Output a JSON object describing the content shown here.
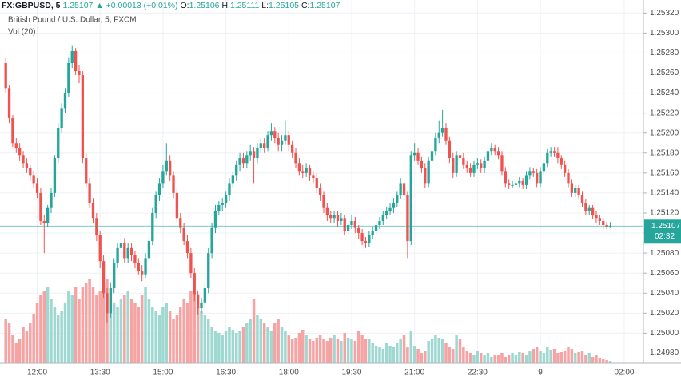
{
  "header": {
    "symbol": "FX:GBPUSD, 5",
    "last": "1.25107",
    "change": "▲ +0.00013 (+0.01%)",
    "o_label": "O:",
    "o": "1.25106",
    "h_label": "H:",
    "h": "1.25111",
    "l_label": "L:",
    "l": "1.25105",
    "c_label": "C:",
    "c": "1.25107",
    "subtitle": "British Pound / U.S. Dollar, 5, FXCM",
    "volume_label": "Vol (20)",
    "countdown": "02:32"
  },
  "chart_data": {
    "type": "candlestick",
    "last_price": 1.25107,
    "up_color": "#26a69a",
    "down_color": "#ef5350",
    "volume_up_color": "#9fd8d1",
    "volume_down_color": "#f5a3a3",
    "grid": true,
    "ylim": [
      1.2497,
      1.25333
    ],
    "vlim": [
      0,
      455
    ],
    "yticks": [
      {
        "value": 1.2498,
        "label": "1.24980"
      },
      {
        "value": 1.25,
        "label": "1.25000"
      },
      {
        "value": 1.2502,
        "label": "1.25020"
      },
      {
        "value": 1.2504,
        "label": "1.25040"
      },
      {
        "value": 1.2506,
        "label": "1.25060"
      },
      {
        "value": 1.2508,
        "label": "1.25080"
      },
      {
        "value": 1.251,
        "label": "1.25100"
      },
      {
        "value": 1.2512,
        "label": "1.25120"
      },
      {
        "value": 1.2514,
        "label": "1.25140"
      },
      {
        "value": 1.2516,
        "label": "1.25160"
      },
      {
        "value": 1.2518,
        "label": "1.25180"
      },
      {
        "value": 1.252,
        "label": "1.25200"
      },
      {
        "value": 1.2522,
        "label": "1.25220"
      },
      {
        "value": 1.2524,
        "label": "1.25240"
      },
      {
        "value": 1.2526,
        "label": "1.25260"
      },
      {
        "value": 1.2528,
        "label": "1.25280"
      },
      {
        "value": 1.253,
        "label": "1.25300"
      },
      {
        "value": 1.2532,
        "label": "1.25320"
      }
    ],
    "categories": [
      null,
      null,
      null,
      null,
      null,
      null,
      null,
      null,
      null,
      "12:00",
      null,
      null,
      null,
      null,
      null,
      null,
      null,
      null,
      null,
      null,
      null,
      null,
      null,
      null,
      null,
      null,
      null,
      "13:30",
      null,
      null,
      null,
      null,
      null,
      null,
      null,
      null,
      null,
      null,
      null,
      null,
      null,
      null,
      null,
      null,
      null,
      "15:00",
      null,
      null,
      null,
      null,
      null,
      null,
      null,
      null,
      null,
      null,
      null,
      null,
      null,
      null,
      null,
      null,
      null,
      "16:30",
      null,
      null,
      null,
      null,
      null,
      null,
      null,
      null,
      null,
      null,
      null,
      null,
      null,
      null,
      null,
      null,
      null,
      "18:00",
      null,
      null,
      null,
      null,
      null,
      null,
      null,
      null,
      null,
      null,
      null,
      null,
      null,
      null,
      null,
      null,
      null,
      "19:30",
      null,
      null,
      null,
      null,
      null,
      null,
      null,
      null,
      null,
      null,
      null,
      null,
      null,
      null,
      null,
      null,
      null,
      "21:00",
      null,
      null,
      null,
      null,
      null,
      null,
      null,
      null,
      null,
      null,
      null,
      null,
      null,
      null,
      null,
      null,
      null,
      "22:30",
      null,
      null,
      null,
      null,
      null,
      null,
      null,
      null,
      null,
      null,
      null,
      null,
      null,
      null,
      null,
      null,
      null,
      "9",
      null,
      null,
      null,
      null,
      null,
      null,
      null,
      null,
      null,
      null,
      null,
      null,
      null,
      null,
      null,
      null,
      null,
      null,
      null,
      null,
      null,
      null,
      null,
      "02:00",
      null,
      null,
      null,
      null,
      null
    ],
    "open": [
      1.2527,
      1.25245,
      1.25215,
      1.2519,
      1.25185,
      1.25178,
      1.2517,
      1.25165,
      1.25158,
      1.2515,
      1.2514,
      1.25112,
      1.2511,
      1.25125,
      1.2514,
      1.25175,
      1.25205,
      1.25225,
      1.2524,
      1.2527,
      1.25282,
      1.25262,
      1.25258,
      1.25175,
      1.2515,
      1.2513,
      1.25115,
      1.25098,
      1.25072,
      1.2504,
      1.2502,
      1.25045,
      1.2507,
      1.25085,
      1.2509,
      1.25075,
      1.25085,
      1.25078,
      1.2507,
      1.25062,
      1.25058,
      1.25075,
      1.25092,
      1.2512,
      1.25138,
      1.2515,
      1.25162,
      1.25172,
      1.25158,
      1.2514,
      1.25115,
      1.25105,
      1.25092,
      1.2508,
      1.2506,
      1.25038,
      1.25025,
      1.2503,
      1.25045,
      1.2508,
      1.25105,
      1.25122,
      1.25128,
      1.2513,
      1.25138,
      1.2515,
      1.25158,
      1.25168,
      1.25175,
      1.2517,
      1.25178,
      1.25182,
      1.25175,
      1.25185,
      1.2519,
      1.25185,
      1.25198,
      1.25202,
      1.25195,
      1.25188,
      1.25192,
      1.25198,
      1.25188,
      1.2518,
      1.2517,
      1.25162,
      1.2516,
      1.25165,
      1.25158,
      1.25155,
      1.25145,
      1.25138,
      1.25125,
      1.25118,
      1.25115,
      1.25118,
      1.25112,
      1.25115,
      1.25102,
      1.25108,
      1.25112,
      1.25105,
      1.251,
      1.25092,
      1.2509,
      1.25098,
      1.25102,
      1.25108,
      1.25112,
      1.25118,
      1.25122,
      1.25125,
      1.2513,
      1.25138,
      1.2515,
      1.25138,
      1.25092,
      1.25178,
      1.2518,
      1.25172,
      1.25165,
      1.2515,
      1.25172,
      1.25182,
      1.25195,
      1.252,
      1.25205,
      1.25192,
      1.25175,
      1.2516,
      1.25178,
      1.25175,
      1.25168,
      1.25165,
      1.2516,
      1.25168,
      1.2517,
      1.25165,
      1.25172,
      1.25182,
      1.25185,
      1.25182,
      1.25178,
      1.25162,
      1.2515,
      1.25148,
      1.25148,
      1.2515,
      1.25152,
      1.25148,
      1.25158,
      1.25162,
      1.2516,
      1.2515,
      1.25162,
      1.2517,
      1.2518,
      1.25182,
      1.2518,
      1.25175,
      1.25168,
      1.2516,
      1.2515,
      1.2514,
      1.25145,
      1.25138,
      1.2513,
      1.25122,
      1.25125,
      1.25118,
      1.25115,
      1.25112,
      1.25108,
      1.25106,
      null,
      null,
      null,
      null,
      null,
      null,
      null,
      null,
      null
    ],
    "high": [
      1.25275,
      1.25248,
      1.25218,
      1.25195,
      1.2519,
      1.25182,
      1.25175,
      1.25168,
      1.25162,
      1.25155,
      1.25145,
      1.25118,
      1.25128,
      1.25145,
      1.25178,
      1.2521,
      1.2523,
      1.25245,
      1.25275,
      1.25287,
      1.25285,
      1.25268,
      1.25262,
      1.2518,
      1.25155,
      1.25135,
      1.2512,
      1.25102,
      1.25078,
      1.25045,
      1.2505,
      1.25075,
      1.2509,
      1.25098,
      1.25095,
      1.2509,
      1.2509,
      1.25082,
      1.25075,
      1.25068,
      1.2508,
      1.25098,
      1.25125,
      1.25142,
      1.25155,
      1.25168,
      1.2519,
      1.25178,
      1.25162,
      1.25145,
      1.2512,
      1.2511,
      1.25098,
      1.25085,
      1.25065,
      1.25042,
      1.25035,
      1.2505,
      1.25085,
      1.2511,
      1.25128,
      1.25132,
      1.25135,
      1.25142,
      1.25155,
      1.25162,
      1.25172,
      1.2518,
      1.2518,
      1.25182,
      1.25188,
      1.25186,
      1.2519,
      1.25195,
      1.25195,
      1.25202,
      1.2521,
      1.25206,
      1.252,
      1.25198,
      1.25212,
      1.25202,
      1.25192,
      1.25185,
      1.25175,
      1.25168,
      1.2517,
      1.25168,
      1.25162,
      1.2516,
      1.2515,
      1.25142,
      1.2513,
      1.25122,
      1.25122,
      1.25122,
      1.2512,
      1.25118,
      1.25112,
      1.25118,
      1.25116,
      1.25108,
      1.25104,
      1.25096,
      1.25102,
      1.25106,
      1.25112,
      1.25116,
      1.25122,
      1.25126,
      1.2513,
      1.25135,
      1.25142,
      1.25155,
      1.25155,
      1.25142,
      1.25182,
      1.2519,
      1.25185,
      1.25176,
      1.2517,
      1.25176,
      1.25188,
      1.252,
      1.25212,
      1.25223,
      1.2521,
      1.25196,
      1.2518,
      1.25182,
      1.25182,
      1.2518,
      1.25172,
      1.2517,
      1.25172,
      1.25175,
      1.25174,
      1.25176,
      1.25188,
      1.2519,
      1.25188,
      1.25186,
      1.25182,
      1.25166,
      1.25154,
      1.25152,
      1.25153,
      1.25156,
      1.25155,
      1.25162,
      1.25166,
      1.25165,
      1.25164,
      1.25166,
      1.25174,
      1.25184,
      1.25186,
      1.25186,
      1.25186,
      1.25178,
      1.25172,
      1.25164,
      1.25154,
      1.25148,
      1.25148,
      1.25142,
      1.25134,
      1.25128,
      1.25128,
      1.25122,
      1.25118,
      1.25115,
      1.25111,
      1.25111,
      null,
      null,
      null,
      null,
      null,
      null,
      null,
      null,
      null
    ],
    "low": [
      1.2524,
      1.2521,
      1.25186,
      1.2518,
      1.25172,
      1.25165,
      1.2516,
      1.25152,
      1.25145,
      1.25135,
      1.25108,
      1.2508,
      1.25106,
      1.2512,
      1.25136,
      1.2517,
      1.252,
      1.2522,
      1.25236,
      1.25265,
      1.25258,
      1.2525,
      1.2517,
      1.25145,
      1.25125,
      1.2511,
      1.25092,
      1.25065,
      1.25035,
      1.2501,
      1.25015,
      1.2504,
      1.25065,
      1.2508,
      1.2507,
      1.2507,
      1.25072,
      1.25065,
      1.25058,
      1.25052,
      1.25055,
      1.2507,
      1.25088,
      1.25115,
      1.25132,
      1.25145,
      1.25158,
      1.25152,
      1.25135,
      1.2511,
      1.251,
      1.25088,
      1.25075,
      1.25055,
      1.25032,
      1.25018,
      1.2502,
      1.25025,
      1.2504,
      1.25075,
      1.251,
      1.25118,
      1.25122,
      1.25125,
      1.25132,
      1.25145,
      1.25152,
      1.25162,
      1.25165,
      1.25165,
      1.25172,
      1.2515,
      1.2517,
      1.2518,
      1.2518,
      1.25182,
      1.25192,
      1.2519,
      1.25182,
      1.25182,
      1.25188,
      1.25182,
      1.25175,
      1.25165,
      1.25158,
      1.25155,
      1.25156,
      1.25152,
      1.2515,
      1.2514,
      1.25132,
      1.2512,
      1.25112,
      1.2511,
      1.2511,
      1.25106,
      1.25108,
      1.25098,
      1.25098,
      1.25104,
      1.251,
      1.25094,
      1.25088,
      1.25085,
      1.25086,
      1.25094,
      1.25098,
      1.25104,
      1.25108,
      1.25114,
      1.25118,
      1.2512,
      1.25126,
      1.25134,
      1.25132,
      1.25075,
      1.25088,
      1.25172,
      1.25168,
      1.2516,
      1.25145,
      1.25146,
      1.25168,
      1.25178,
      1.2519,
      1.25196,
      1.25188,
      1.2517,
      1.25155,
      1.25156,
      1.2517,
      1.25164,
      1.2516,
      1.25156,
      1.25156,
      1.25164,
      1.2516,
      1.2516,
      1.25168,
      1.25178,
      1.25178,
      1.25174,
      1.25158,
      1.25146,
      1.25144,
      1.25145,
      1.25145,
      1.25146,
      1.25144,
      1.25144,
      1.25154,
      1.25156,
      1.25146,
      1.25146,
      1.25158,
      1.25166,
      1.25176,
      1.25176,
      1.2517,
      1.25164,
      1.25156,
      1.25146,
      1.25136,
      1.25136,
      1.25134,
      1.25126,
      1.25118,
      1.25118,
      1.25114,
      1.2511,
      1.25108,
      1.25104,
      1.25104,
      1.25105,
      null,
      null,
      null,
      null,
      null,
      null,
      null,
      null,
      null
    ],
    "close": [
      1.25245,
      1.25215,
      1.2519,
      1.25185,
      1.25178,
      1.2517,
      1.25165,
      1.25158,
      1.2515,
      1.2514,
      1.25112,
      1.2511,
      1.25125,
      1.2514,
      1.25175,
      1.25205,
      1.25225,
      1.2524,
      1.2527,
      1.25282,
      1.25262,
      1.25258,
      1.25175,
      1.2515,
      1.2513,
      1.25115,
      1.25098,
      1.25072,
      1.2504,
      1.2502,
      1.25045,
      1.2507,
      1.25085,
      1.2509,
      1.25075,
      1.25085,
      1.25078,
      1.2507,
      1.25062,
      1.25058,
      1.25075,
      1.25092,
      1.2512,
      1.25138,
      1.2515,
      1.25162,
      1.25172,
      1.25158,
      1.2514,
      1.25115,
      1.25105,
      1.25092,
      1.2508,
      1.2506,
      1.25038,
      1.25025,
      1.2503,
      1.25045,
      1.2508,
      1.25105,
      1.25122,
      1.25128,
      1.2513,
      1.25138,
      1.2515,
      1.25158,
      1.25168,
      1.25175,
      1.2517,
      1.25178,
      1.25182,
      1.25175,
      1.25185,
      1.2519,
      1.25185,
      1.25198,
      1.25202,
      1.25195,
      1.25188,
      1.25192,
      1.25198,
      1.25188,
      1.2518,
      1.2517,
      1.25162,
      1.2516,
      1.25165,
      1.25158,
      1.25155,
      1.25145,
      1.25138,
      1.25125,
      1.25118,
      1.25115,
      1.25118,
      1.25112,
      1.25115,
      1.25102,
      1.25108,
      1.25112,
      1.25105,
      1.251,
      1.25092,
      1.2509,
      1.25098,
      1.25102,
      1.25108,
      1.25112,
      1.25118,
      1.25122,
      1.25125,
      1.2513,
      1.25138,
      1.2515,
      1.25138,
      1.25092,
      1.25178,
      1.2518,
      1.25172,
      1.25165,
      1.2515,
      1.25172,
      1.25182,
      1.25195,
      1.252,
      1.25205,
      1.25192,
      1.25175,
      1.2516,
      1.25178,
      1.25175,
      1.25168,
      1.25165,
      1.2516,
      1.25168,
      1.2517,
      1.25165,
      1.25172,
      1.25182,
      1.25185,
      1.25182,
      1.25178,
      1.25162,
      1.2515,
      1.25148,
      1.25148,
      1.2515,
      1.25152,
      1.25148,
      1.25158,
      1.25162,
      1.2516,
      1.2515,
      1.25162,
      1.2517,
      1.2518,
      1.25182,
      1.2518,
      1.25175,
      1.25168,
      1.2516,
      1.2515,
      1.2514,
      1.25145,
      1.25138,
      1.2513,
      1.25122,
      1.25125,
      1.25118,
      1.25115,
      1.25112,
      1.25108,
      1.25106,
      1.25107,
      null,
      null,
      null,
      null,
      null,
      null,
      null,
      null,
      null
    ],
    "volume": [
      55,
      50,
      35,
      25,
      30,
      45,
      40,
      50,
      62,
      75,
      85,
      90,
      95,
      80,
      70,
      60,
      65,
      75,
      90,
      85,
      95,
      80,
      95,
      100,
      105,
      95,
      85,
      90,
      100,
      105,
      80,
      75,
      70,
      80,
      85,
      90,
      80,
      75,
      70,
      85,
      95,
      80,
      70,
      65,
      60,
      70,
      75,
      65,
      55,
      60,
      70,
      80,
      75,
      90,
      85,
      70,
      65,
      60,
      55,
      45,
      40,
      38,
      35,
      40,
      45,
      42,
      38,
      40,
      45,
      50,
      55,
      80,
      60,
      55,
      50,
      45,
      40,
      50,
      55,
      45,
      40,
      35,
      30,
      32,
      38,
      42,
      35,
      30,
      28,
      32,
      35,
      30,
      28,
      32,
      35,
      30,
      28,
      38,
      32,
      30,
      28,
      40,
      35,
      30,
      30,
      25,
      22,
      20,
      18,
      25,
      22,
      20,
      25,
      30,
      35,
      20,
      40,
      22,
      18,
      12,
      15,
      28,
      30,
      35,
      32,
      30,
      25,
      20,
      18,
      35,
      30,
      20,
      15,
      12,
      10,
      15,
      12,
      10,
      12,
      8,
      10,
      10,
      12,
      8,
      10,
      12,
      10,
      14,
      12,
      10,
      15,
      18,
      20,
      15,
      12,
      20,
      16,
      18,
      12,
      14,
      15,
      20,
      18,
      12,
      14,
      15,
      10,
      12,
      8,
      10,
      6,
      5,
      4,
      3,
      null,
      null,
      null,
      null,
      null,
      null,
      null,
      null,
      null
    ]
  }
}
